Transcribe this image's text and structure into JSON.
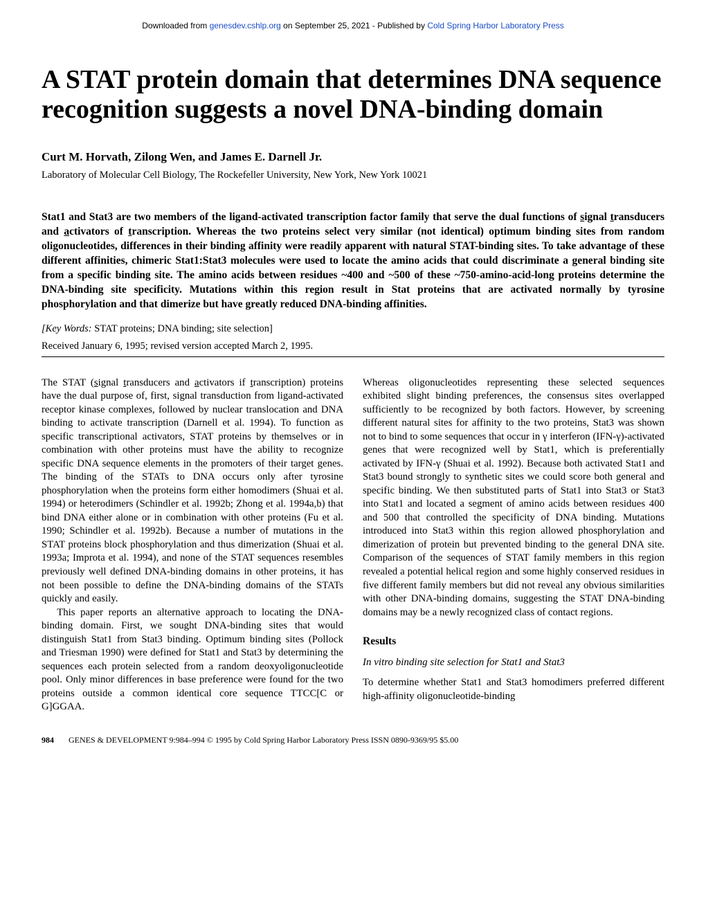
{
  "header": {
    "prefix": "Downloaded from ",
    "link1": "genesdev.cshlp.org",
    "mid": " on September 25, 2021 - Published by ",
    "link2": "Cold Spring Harbor Laboratory Press"
  },
  "title": "A STAT protein domain that determines DNA sequence recognition suggests a novel DNA-binding domain",
  "authors": "Curt M. Horvath, Zilong Wen, and James E. Darnell Jr.",
  "affiliation": "Laboratory of Molecular Cell Biology, The Rockefeller University, New York, New York 10021",
  "abstract_html": "Stat1 and Stat3 are two members of the ligand-activated transcription factor family that serve the dual functions of <span class='underline'>s</span>ignal <span class='underline'>t</span>ransducers and <span class='underline'>a</span>ctivators of <span class='underline'>t</span>ranscription. Whereas the two proteins select very similar (not identical) optimum binding sites from random oligonucleotides, differences in their binding affinity were readily apparent with natural STAT-binding sites. To take advantage of these different affinities, chimeric Stat1:Stat3 molecules were used to locate the amino acids that could discriminate a general binding site from a specific binding site. The amino acids between residues ~400 and ~500 of these ~750-amino-acid-long proteins determine the DNA-binding site specificity. Mutations within this region result in Stat proteins that are activated normally by tyrosine phosphorylation and that dimerize but have greatly reduced DNA-binding affinities.",
  "keywords": {
    "label": "[Key Words:",
    "text": " STAT proteins; DNA binding; site selection]"
  },
  "received": "Received January 6, 1995; revised version accepted March 2, 1995.",
  "col1": {
    "p1_html": "The STAT (<span class='underline'>s</span>ignal <span class='underline'>t</span>ransducers and <span class='underline'>a</span>ctivators if <span class='underline'>t</span>ranscription) proteins have the dual purpose of, first, signal transduction from ligand-activated receptor kinase complexes, followed by nuclear translocation and DNA binding to activate transcription (Darnell et al. 1994). To function as specific transcriptional activators, STAT proteins by themselves or in combination with other proteins must have the ability to recognize specific DNA sequence elements in the promoters of their target genes. The binding of the STATs to DNA occurs only after tyrosine phosphorylation when the proteins form either homodimers (Shuai et al. 1994) or heterodimers (Schindler et al. 1992b; Zhong et al. 1994a,b) that bind DNA either alone or in combination with other proteins (Fu et al. 1990; Schindler et al. 1992b). Because a number of mutations in the STAT proteins block phosphorylation and thus dimerization (Shuai et al. 1993a; Improta et al. 1994), and none of the STAT sequences resembles previously well defined DNA-binding domains in other proteins, it has not been possible to define the DNA-binding domains of the STATs quickly and easily.",
    "p2": "This paper reports an alternative approach to locating the DNA-binding domain. First, we sought DNA-binding sites that would distinguish Stat1 from Stat3 binding. Optimum binding sites (Pollock and Triesman 1990) were defined for Stat1 and Stat3 by determining the sequences each protein selected from a random deoxyoligonucleotide pool. Only minor differences in base preference were found for the two proteins outside a common identical core sequence TTCC[C or G]GGAA."
  },
  "col2": {
    "p1": "Whereas oligonucleotides representing these selected sequences exhibited slight binding preferences, the consensus sites overlapped sufficiently to be recognized by both factors. However, by screening different natural sites for affinity to the two proteins, Stat3 was shown not to bind to some sequences that occur in γ interferon (IFN-γ)-activated genes that were recognized well by Stat1, which is preferentially activated by IFN-γ (Shuai et al. 1992). Because both activated Stat1 and Stat3 bound strongly to synthetic sites we could score both general and specific binding. We then substituted parts of Stat1 into Stat3 or Stat3 into Stat1 and located a segment of amino acids between residues 400 and 500 that controlled the specificity of DNA binding. Mutations introduced into Stat3 within this region allowed phosphorylation and dimerization of protein but prevented binding to the general DNA site. Comparison of the sequences of STAT family members in this region revealed a potential helical region and some highly conserved residues in five different family members but did not reveal any obvious similarities with other DNA-binding domains, suggesting the STAT DNA-binding domains may be a newly recognized class of contact regions.",
    "results_heading": "Results",
    "subsection": "In vitro binding site selection for Stat1 and Stat3",
    "p2": "To determine whether Stat1 and Stat3 homodimers preferred different high-affinity oligonucleotide-binding"
  },
  "footer": {
    "page_num": "984",
    "text": "GENES & DEVELOPMENT 9:984–994 © 1995 by Cold Spring Harbor Laboratory Press ISSN 0890-9369/95 $5.00"
  }
}
